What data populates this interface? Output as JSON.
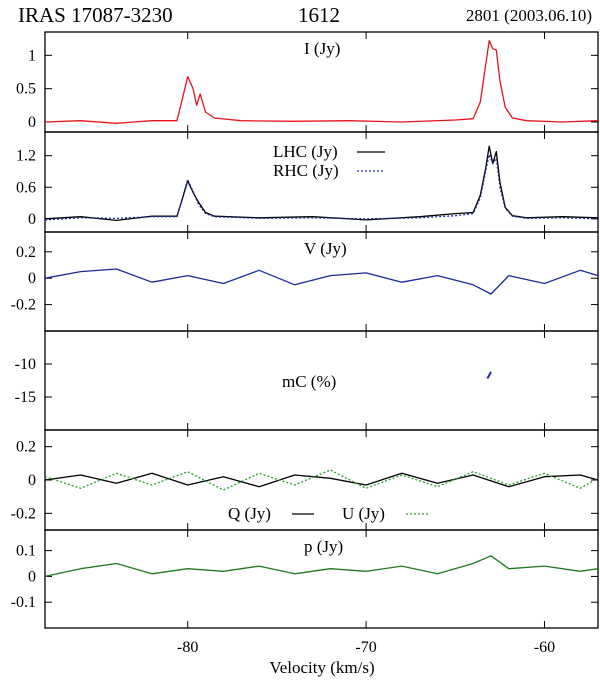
{
  "header": {
    "target": "IRAS 17087-3230",
    "frequency": "1612",
    "observation": "2801 (2003.06.10)"
  },
  "chart_data": {
    "type": "line",
    "xlabel": "Velocity (km/s)",
    "xlim": [
      -88,
      -57
    ],
    "x_ticks": [
      -80,
      -70,
      -60
    ],
    "x_tick_labels": [
      "-80",
      "-70",
      "-60"
    ],
    "grid": false,
    "panels": [
      {
        "id": "I",
        "label": "I (Jy)",
        "ylim": [
          -0.15,
          1.35
        ],
        "y_ticks": [
          0,
          0.5,
          1
        ],
        "y_tick_labels": [
          "0",
          "0.5",
          "1"
        ],
        "series": [
          {
            "name": "I (Jy)",
            "color": "#e8141c",
            "dash": "",
            "points": [
              [
                -88,
                0
              ],
              [
                -86,
                0.02
              ],
              [
                -84,
                -0.02
              ],
              [
                -82,
                0.02
              ],
              [
                -80.6,
                0.02
              ],
              [
                -80.3,
                0.35
              ],
              [
                -80.0,
                0.68
              ],
              [
                -79.7,
                0.5
              ],
              [
                -79.5,
                0.25
              ],
              [
                -79.3,
                0.42
              ],
              [
                -79.0,
                0.15
              ],
              [
                -78.5,
                0.06
              ],
              [
                -77,
                0.02
              ],
              [
                -74,
                0.01
              ],
              [
                -71,
                0.02
              ],
              [
                -68,
                0
              ],
              [
                -65,
                0.03
              ],
              [
                -64,
                0.05
              ],
              [
                -63.6,
                0.3
              ],
              [
                -63.3,
                0.85
              ],
              [
                -63.1,
                1.22
              ],
              [
                -62.9,
                1.1
              ],
              [
                -62.7,
                1.08
              ],
              [
                -62.5,
                0.62
              ],
              [
                -62.2,
                0.22
              ],
              [
                -61.8,
                0.06
              ],
              [
                -61,
                0.02
              ],
              [
                -59,
                0
              ],
              [
                -57,
                0.02
              ]
            ]
          }
        ]
      },
      {
        "id": "LR",
        "label": "",
        "ylim": [
          -0.25,
          1.65
        ],
        "y_ticks": [
          0,
          0.6,
          1.2
        ],
        "y_tick_labels": [
          "0",
          "0.6",
          "1.2"
        ],
        "legend": [
          {
            "text": "LHC (Jy)",
            "series": 0
          },
          {
            "text": "RHC (Jy)",
            "series": 1
          }
        ],
        "series": [
          {
            "name": "LHC (Jy)",
            "color": "#000000",
            "dash": "",
            "points": [
              [
                -88,
                0
              ],
              [
                -86,
                0.04
              ],
              [
                -84,
                -0.03
              ],
              [
                -82,
                0.05
              ],
              [
                -80.6,
                0.05
              ],
              [
                -80.3,
                0.38
              ],
              [
                -80.0,
                0.72
              ],
              [
                -79.7,
                0.5
              ],
              [
                -79.4,
                0.32
              ],
              [
                -79.0,
                0.12
              ],
              [
                -78.5,
                0.05
              ],
              [
                -76,
                0.02
              ],
              [
                -73,
                0.04
              ],
              [
                -70,
                -0.02
              ],
              [
                -67,
                0.04
              ],
              [
                -65,
                0.1
              ],
              [
                -64,
                0.12
              ],
              [
                -63.6,
                0.45
              ],
              [
                -63.3,
                0.95
              ],
              [
                -63.1,
                1.38
              ],
              [
                -62.9,
                1.05
              ],
              [
                -62.7,
                1.28
              ],
              [
                -62.5,
                0.7
              ],
              [
                -62.2,
                0.22
              ],
              [
                -61.8,
                0.06
              ],
              [
                -61,
                0.02
              ],
              [
                -59,
                0.04
              ],
              [
                -57,
                0.02
              ]
            ]
          },
          {
            "name": "RHC (Jy)",
            "color": "#1c2a9c",
            "dash": "2,2",
            "points": [
              [
                -88,
                -0.02
              ],
              [
                -86,
                0.02
              ],
              [
                -84,
                0.01
              ],
              [
                -82,
                0.04
              ],
              [
                -80.6,
                0.04
              ],
              [
                -80.3,
                0.4
              ],
              [
                -80.0,
                0.75
              ],
              [
                -79.7,
                0.52
              ],
              [
                -79.4,
                0.28
              ],
              [
                -79.0,
                0.1
              ],
              [
                -78.5,
                0.04
              ],
              [
                -76,
                0.01
              ],
              [
                -73,
                0.02
              ],
              [
                -70,
                0
              ],
              [
                -67,
                0.02
              ],
              [
                -65,
                0.06
              ],
              [
                -64,
                0.1
              ],
              [
                -63.6,
                0.4
              ],
              [
                -63.3,
                0.9
              ],
              [
                -63.1,
                1.22
              ],
              [
                -62.9,
                1.05
              ],
              [
                -62.7,
                1.15
              ],
              [
                -62.5,
                0.6
              ],
              [
                -62.2,
                0.2
              ],
              [
                -61.8,
                0.05
              ],
              [
                -61,
                0.01
              ],
              [
                -59,
                0.02
              ],
              [
                -57,
                0
              ]
            ]
          }
        ]
      },
      {
        "id": "V",
        "label": "V (Jy)",
        "ylim": [
          -0.4,
          0.35
        ],
        "y_ticks": [
          -0.2,
          0,
          0.2
        ],
        "y_tick_labels": [
          "-0.2",
          "0",
          "0.2"
        ],
        "series": [
          {
            "name": "V (Jy)",
            "color": "#1c2a9c",
            "dash": "",
            "points": [
              [
                -88,
                0
              ],
              [
                -86,
                0.05
              ],
              [
                -84,
                0.07
              ],
              [
                -82,
                -0.03
              ],
              [
                -80,
                0.02
              ],
              [
                -78,
                -0.04
              ],
              [
                -76,
                0.06
              ],
              [
                -74,
                -0.05
              ],
              [
                -72,
                0.02
              ],
              [
                -70,
                0.04
              ],
              [
                -68,
                -0.03
              ],
              [
                -66,
                0.02
              ],
              [
                -64,
                -0.05
              ],
              [
                -63,
                -0.12
              ],
              [
                -62,
                0.02
              ],
              [
                -60,
                -0.04
              ],
              [
                -58,
                0.06
              ],
              [
                -57,
                0.02
              ]
            ]
          }
        ]
      },
      {
        "id": "mC",
        "label": "mC (%)",
        "ylim": [
          -20,
          -5
        ],
        "y_ticks": [
          -15,
          -10
        ],
        "y_tick_labels": [
          "-15",
          "-10"
        ],
        "series": [
          {
            "name": "mC (%)",
            "color": "#1c2a9c",
            "dash": "",
            "points": [
              [
                -63.2,
                -12.2
              ],
              [
                -63.0,
                -11.2
              ]
            ]
          }
        ]
      },
      {
        "id": "QU",
        "label": "",
        "ylim": [
          -0.3,
          0.3
        ],
        "y_ticks": [
          -0.2,
          0,
          0.2
        ],
        "y_tick_labels": [
          "-0.2",
          "0",
          "0.2"
        ],
        "legend": [
          {
            "text": "Q (Jy)",
            "series": 0
          },
          {
            "text": "U (Jy)",
            "series": 1
          }
        ],
        "series": [
          {
            "name": "Q (Jy)",
            "color": "#000000",
            "dash": "",
            "points": [
              [
                -88,
                0
              ],
              [
                -86,
                0.03
              ],
              [
                -84,
                -0.02
              ],
              [
                -82,
                0.04
              ],
              [
                -80,
                -0.03
              ],
              [
                -78,
                0.02
              ],
              [
                -76,
                -0.04
              ],
              [
                -74,
                0.03
              ],
              [
                -72,
                0.01
              ],
              [
                -70,
                -0.03
              ],
              [
                -68,
                0.04
              ],
              [
                -66,
                -0.02
              ],
              [
                -64,
                0.03
              ],
              [
                -62,
                -0.04
              ],
              [
                -60,
                0.02
              ],
              [
                -58,
                0.03
              ],
              [
                -57,
                0
              ]
            ]
          },
          {
            "name": "U (Jy)",
            "color": "#2a9a2a",
            "dash": "2,2",
            "points": [
              [
                -88,
                0.02
              ],
              [
                -86,
                -0.05
              ],
              [
                -84,
                0.04
              ],
              [
                -82,
                -0.03
              ],
              [
                -80,
                0.05
              ],
              [
                -78,
                -0.06
              ],
              [
                -76,
                0.04
              ],
              [
                -74,
                -0.03
              ],
              [
                -72,
                0.06
              ],
              [
                -70,
                -0.05
              ],
              [
                -68,
                0.03
              ],
              [
                -66,
                -0.04
              ],
              [
                -64,
                0.05
              ],
              [
                -62,
                -0.03
              ],
              [
                -60,
                0.04
              ],
              [
                -58,
                -0.05
              ],
              [
                -57,
                0.01
              ]
            ]
          }
        ]
      },
      {
        "id": "p",
        "label": "p (Jy)",
        "ylim": [
          -0.2,
          0.18
        ],
        "y_ticks": [
          -0.1,
          0,
          0.1
        ],
        "y_tick_labels": [
          "-0.1",
          "0",
          "0.1"
        ],
        "series": [
          {
            "name": "p (Jy)",
            "color": "#1e7a1e",
            "dash": "",
            "points": [
              [
                -88,
                0
              ],
              [
                -86,
                0.03
              ],
              [
                -84,
                0.05
              ],
              [
                -82,
                0.01
              ],
              [
                -80,
                0.03
              ],
              [
                -78,
                0.02
              ],
              [
                -76,
                0.04
              ],
              [
                -74,
                0.01
              ],
              [
                -72,
                0.03
              ],
              [
                -70,
                0.02
              ],
              [
                -68,
                0.04
              ],
              [
                -66,
                0.01
              ],
              [
                -64,
                0.05
              ],
              [
                -63,
                0.08
              ],
              [
                -62,
                0.03
              ],
              [
                -60,
                0.04
              ],
              [
                -58,
                0.02
              ],
              [
                -57,
                0.03
              ]
            ]
          }
        ]
      }
    ]
  }
}
